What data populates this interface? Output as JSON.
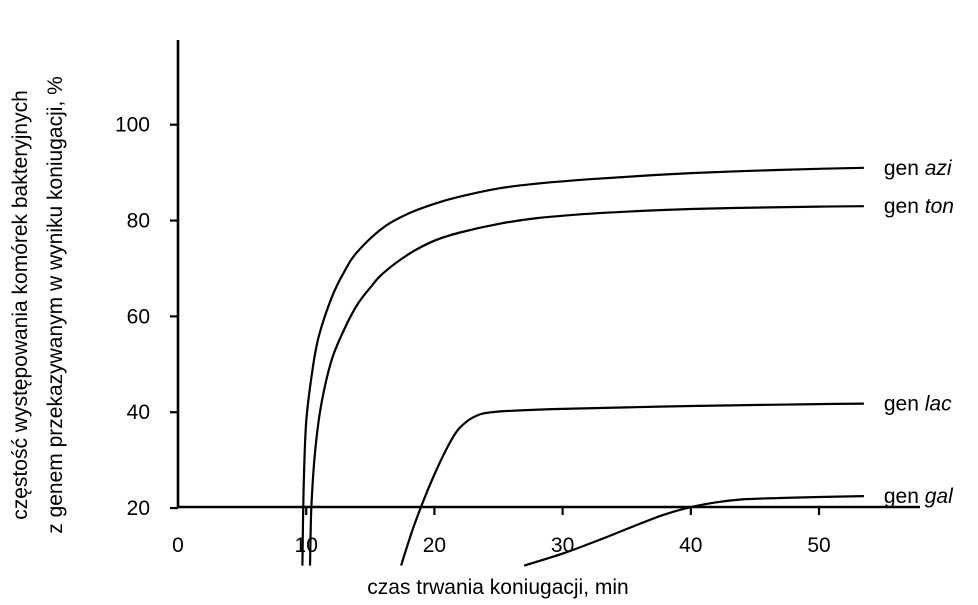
{
  "chart_data": {
    "type": "line",
    "xlabel": "czas trwania koniugacji, min",
    "ylabel_line1": "częstość występowania komórek bakteryjnych",
    "ylabel_line2": "z genem przekazywanym w wyniku koniugacji, %",
    "xlim": [
      0,
      58
    ],
    "ylim": [
      8,
      105
    ],
    "x_ticks": [
      0,
      10,
      20,
      30,
      40,
      50
    ],
    "y_ticks": [
      20,
      40,
      60,
      80,
      100
    ],
    "grid": false,
    "legend": "labels at line ends (right)",
    "series": [
      {
        "prefix": "gen ",
        "name": "azi",
        "x": [
          9.7,
          9.8,
          10.0,
          10.5,
          11.0,
          12.0,
          13.0,
          14.0,
          16.0,
          18.0,
          20.0,
          22.0,
          25.0,
          28.0,
          32.0,
          36.0,
          40.0,
          45.0,
          50.0,
          53.5
        ],
        "y": [
          8.0,
          24.0,
          38.0,
          49.0,
          56.0,
          64.0,
          69.5,
          73.5,
          78.5,
          81.5,
          83.5,
          85.0,
          86.7,
          87.7,
          88.6,
          89.3,
          89.9,
          90.4,
          90.8,
          91.0
        ]
      },
      {
        "prefix": "gen ",
        "name": "ton",
        "x": [
          10.3,
          10.4,
          10.7,
          11.2,
          12.0,
          13.0,
          14.0,
          15.0,
          16.0,
          18.0,
          20.0,
          22.0,
          25.0,
          28.0,
          32.0,
          36.0,
          40.0,
          45.0,
          50.0,
          53.5
        ],
        "y": [
          8.0,
          20.0,
          32.0,
          42.0,
          51.0,
          57.5,
          62.5,
          66.0,
          69.0,
          73.0,
          75.8,
          77.5,
          79.3,
          80.5,
          81.4,
          82.0,
          82.4,
          82.7,
          82.9,
          83.0
        ]
      },
      {
        "prefix": "gen ",
        "name": "lac",
        "x": [
          17.4,
          18.5,
          20.0,
          21.5,
          22.5,
          23.5,
          24.5,
          26.0,
          30.0,
          35.0,
          40.0,
          45.0,
          50.0,
          53.5
        ],
        "y": [
          8.0,
          17.0,
          27.0,
          35.0,
          38.0,
          39.5,
          40.0,
          40.3,
          40.7,
          41.0,
          41.3,
          41.5,
          41.7,
          41.8
        ]
      },
      {
        "prefix": "gen ",
        "name": "gal",
        "x": [
          27.0,
          30.0,
          33.0,
          36.0,
          38.0,
          40.0,
          42.0,
          44.0,
          47.0,
          50.0,
          53.5
        ],
        "y": [
          8.0,
          10.5,
          13.5,
          16.7,
          18.7,
          20.2,
          21.2,
          21.8,
          22.1,
          22.3,
          22.5
        ]
      }
    ]
  }
}
